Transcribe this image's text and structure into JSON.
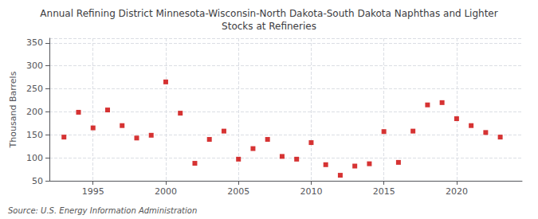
{
  "chart_data": {
    "type": "scatter",
    "title": "Annual Refining District Minnesota-Wisconsin-North Dakota-South Dakota Naphthas and Lighter\nStocks at Refineries",
    "ylabel": "Thousand Barrels",
    "annotation": "Source: U.S. Energy Information Administration",
    "x": [
      1993,
      1994,
      1995,
      1996,
      1997,
      1998,
      1999,
      2000,
      2001,
      2002,
      2003,
      2004,
      2005,
      2006,
      2007,
      2008,
      2009,
      2010,
      2011,
      2012,
      2013,
      2014,
      2015,
      2016,
      2017,
      2018,
      2019,
      2020,
      2021,
      2022,
      2023
    ],
    "values": [
      145,
      199,
      165,
      204,
      170,
      143,
      149,
      265,
      197,
      88,
      140,
      158,
      97,
      120,
      140,
      103,
      97,
      133,
      85,
      62,
      82,
      87,
      157,
      90,
      158,
      215,
      220,
      185,
      170,
      155,
      145
    ],
    "color": "#cc0000",
    "marker": "square",
    "xlim": [
      1992,
      2024.5
    ],
    "xticks": [
      1995,
      2000,
      2005,
      2010,
      2015,
      2020
    ],
    "ylim": [
      50,
      360
    ],
    "yticks": [
      50,
      100,
      150,
      200,
      250,
      300,
      350
    ],
    "grid": true
  }
}
